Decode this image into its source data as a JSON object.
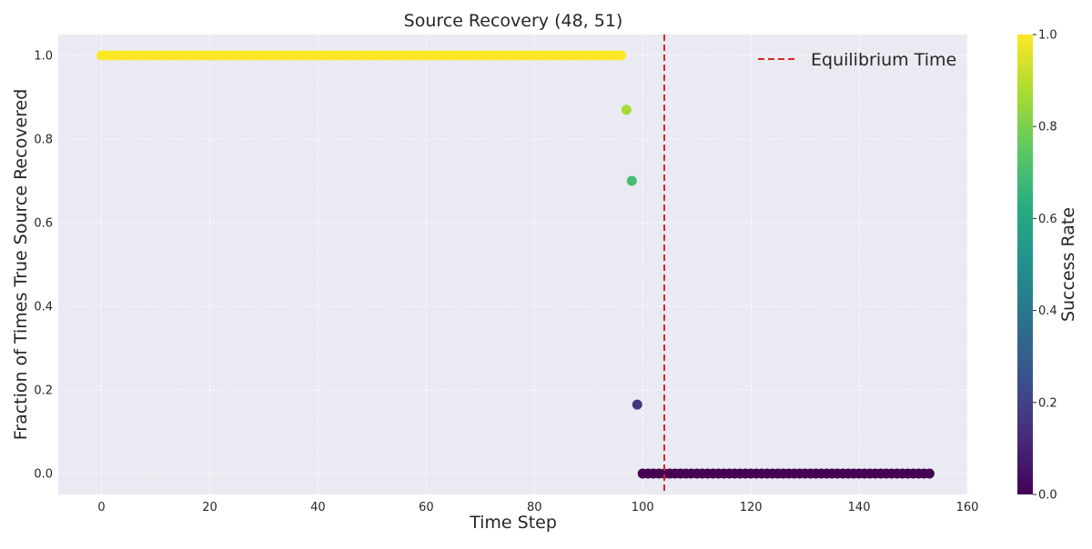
{
  "chart_data": {
    "type": "scatter",
    "title": "Source Recovery (48, 51)",
    "xlabel": "Time Step",
    "ylabel": "Fraction of Times True Source Recovered",
    "xlim": [
      -8,
      160
    ],
    "ylim": [
      -0.05,
      1.05
    ],
    "xticks": [
      0,
      20,
      40,
      60,
      80,
      100,
      120,
      140,
      160
    ],
    "yticks": [
      0.0,
      0.2,
      0.4,
      0.6,
      0.8,
      1.0
    ],
    "grid": true,
    "legend_position": "top-right",
    "series": [
      {
        "name": "",
        "colormap": "viridis",
        "points": [
          {
            "x": 0,
            "y": 1.0
          },
          {
            "x": 1,
            "y": 1.0
          },
          {
            "x": 2,
            "y": 1.0
          },
          {
            "x": 3,
            "y": 1.0
          },
          {
            "x": 4,
            "y": 1.0
          },
          {
            "x": 5,
            "y": 1.0
          },
          {
            "x": 6,
            "y": 1.0
          },
          {
            "x": 7,
            "y": 1.0
          },
          {
            "x": 8,
            "y": 1.0
          },
          {
            "x": 9,
            "y": 1.0
          },
          {
            "x": 10,
            "y": 1.0
          },
          {
            "x": 11,
            "y": 1.0
          },
          {
            "x": 12,
            "y": 1.0
          },
          {
            "x": 13,
            "y": 1.0
          },
          {
            "x": 14,
            "y": 1.0
          },
          {
            "x": 15,
            "y": 1.0
          },
          {
            "x": 16,
            "y": 1.0
          },
          {
            "x": 17,
            "y": 1.0
          },
          {
            "x": 18,
            "y": 1.0
          },
          {
            "x": 19,
            "y": 1.0
          },
          {
            "x": 20,
            "y": 1.0
          },
          {
            "x": 21,
            "y": 1.0
          },
          {
            "x": 22,
            "y": 1.0
          },
          {
            "x": 23,
            "y": 1.0
          },
          {
            "x": 24,
            "y": 1.0
          },
          {
            "x": 25,
            "y": 1.0
          },
          {
            "x": 26,
            "y": 1.0
          },
          {
            "x": 27,
            "y": 1.0
          },
          {
            "x": 28,
            "y": 1.0
          },
          {
            "x": 29,
            "y": 1.0
          },
          {
            "x": 30,
            "y": 1.0
          },
          {
            "x": 31,
            "y": 1.0
          },
          {
            "x": 32,
            "y": 1.0
          },
          {
            "x": 33,
            "y": 1.0
          },
          {
            "x": 34,
            "y": 1.0
          },
          {
            "x": 35,
            "y": 1.0
          },
          {
            "x": 36,
            "y": 1.0
          },
          {
            "x": 37,
            "y": 1.0
          },
          {
            "x": 38,
            "y": 1.0
          },
          {
            "x": 39,
            "y": 1.0
          },
          {
            "x": 40,
            "y": 1.0
          },
          {
            "x": 41,
            "y": 1.0
          },
          {
            "x": 42,
            "y": 1.0
          },
          {
            "x": 43,
            "y": 1.0
          },
          {
            "x": 44,
            "y": 1.0
          },
          {
            "x": 45,
            "y": 1.0
          },
          {
            "x": 46,
            "y": 1.0
          },
          {
            "x": 47,
            "y": 1.0
          },
          {
            "x": 48,
            "y": 1.0
          },
          {
            "x": 49,
            "y": 1.0
          },
          {
            "x": 50,
            "y": 1.0
          },
          {
            "x": 51,
            "y": 1.0
          },
          {
            "x": 52,
            "y": 1.0
          },
          {
            "x": 53,
            "y": 1.0
          },
          {
            "x": 54,
            "y": 1.0
          },
          {
            "x": 55,
            "y": 1.0
          },
          {
            "x": 56,
            "y": 1.0
          },
          {
            "x": 57,
            "y": 1.0
          },
          {
            "x": 58,
            "y": 1.0
          },
          {
            "x": 59,
            "y": 1.0
          },
          {
            "x": 60,
            "y": 1.0
          },
          {
            "x": 61,
            "y": 1.0
          },
          {
            "x": 62,
            "y": 1.0
          },
          {
            "x": 63,
            "y": 1.0
          },
          {
            "x": 64,
            "y": 1.0
          },
          {
            "x": 65,
            "y": 1.0
          },
          {
            "x": 66,
            "y": 1.0
          },
          {
            "x": 67,
            "y": 1.0
          },
          {
            "x": 68,
            "y": 1.0
          },
          {
            "x": 69,
            "y": 1.0
          },
          {
            "x": 70,
            "y": 1.0
          },
          {
            "x": 71,
            "y": 1.0
          },
          {
            "x": 72,
            "y": 1.0
          },
          {
            "x": 73,
            "y": 1.0
          },
          {
            "x": 74,
            "y": 1.0
          },
          {
            "x": 75,
            "y": 1.0
          },
          {
            "x": 76,
            "y": 1.0
          },
          {
            "x": 77,
            "y": 1.0
          },
          {
            "x": 78,
            "y": 1.0
          },
          {
            "x": 79,
            "y": 1.0
          },
          {
            "x": 80,
            "y": 1.0
          },
          {
            "x": 81,
            "y": 1.0
          },
          {
            "x": 82,
            "y": 1.0
          },
          {
            "x": 83,
            "y": 1.0
          },
          {
            "x": 84,
            "y": 1.0
          },
          {
            "x": 85,
            "y": 1.0
          },
          {
            "x": 86,
            "y": 1.0
          },
          {
            "x": 87,
            "y": 1.0
          },
          {
            "x": 88,
            "y": 1.0
          },
          {
            "x": 89,
            "y": 1.0
          },
          {
            "x": 90,
            "y": 1.0
          },
          {
            "x": 91,
            "y": 1.0
          },
          {
            "x": 92,
            "y": 1.0
          },
          {
            "x": 93,
            "y": 1.0
          },
          {
            "x": 94,
            "y": 1.0
          },
          {
            "x": 95,
            "y": 1.0
          },
          {
            "x": 96,
            "y": 1.0
          },
          {
            "x": 97,
            "y": 0.87
          },
          {
            "x": 98,
            "y": 0.7
          },
          {
            "x": 99,
            "y": 0.165
          },
          {
            "x": 100,
            "y": 0.0
          },
          {
            "x": 101,
            "y": 0.0
          },
          {
            "x": 102,
            "y": 0.0
          },
          {
            "x": 103,
            "y": 0.0
          },
          {
            "x": 104,
            "y": 0.0
          },
          {
            "x": 105,
            "y": 0.0
          },
          {
            "x": 106,
            "y": 0.0
          },
          {
            "x": 107,
            "y": 0.0
          },
          {
            "x": 108,
            "y": 0.0
          },
          {
            "x": 109,
            "y": 0.0
          },
          {
            "x": 110,
            "y": 0.0
          },
          {
            "x": 111,
            "y": 0.0
          },
          {
            "x": 112,
            "y": 0.0
          },
          {
            "x": 113,
            "y": 0.0
          },
          {
            "x": 114,
            "y": 0.0
          },
          {
            "x": 115,
            "y": 0.0
          },
          {
            "x": 116,
            "y": 0.0
          },
          {
            "x": 117,
            "y": 0.0
          },
          {
            "x": 118,
            "y": 0.0
          },
          {
            "x": 119,
            "y": 0.0
          },
          {
            "x": 120,
            "y": 0.0
          },
          {
            "x": 121,
            "y": 0.0
          },
          {
            "x": 122,
            "y": 0.0
          },
          {
            "x": 123,
            "y": 0.0
          },
          {
            "x": 124,
            "y": 0.0
          },
          {
            "x": 125,
            "y": 0.0
          },
          {
            "x": 126,
            "y": 0.0
          },
          {
            "x": 127,
            "y": 0.0
          },
          {
            "x": 128,
            "y": 0.0
          },
          {
            "x": 129,
            "y": 0.0
          },
          {
            "x": 130,
            "y": 0.0
          },
          {
            "x": 131,
            "y": 0.0
          },
          {
            "x": 132,
            "y": 0.0
          },
          {
            "x": 133,
            "y": 0.0
          },
          {
            "x": 134,
            "y": 0.0
          },
          {
            "x": 135,
            "y": 0.0
          },
          {
            "x": 136,
            "y": 0.0
          },
          {
            "x": 137,
            "y": 0.0
          },
          {
            "x": 138,
            "y": 0.0
          },
          {
            "x": 139,
            "y": 0.0
          },
          {
            "x": 140,
            "y": 0.0
          },
          {
            "x": 141,
            "y": 0.0
          },
          {
            "x": 142,
            "y": 0.0
          },
          {
            "x": 143,
            "y": 0.0
          },
          {
            "x": 144,
            "y": 0.0
          },
          {
            "x": 145,
            "y": 0.0
          },
          {
            "x": 146,
            "y": 0.0
          },
          {
            "x": 147,
            "y": 0.0
          },
          {
            "x": 148,
            "y": 0.0
          },
          {
            "x": 149,
            "y": 0.0
          },
          {
            "x": 150,
            "y": 0.0
          },
          {
            "x": 151,
            "y": 0.0
          },
          {
            "x": 152,
            "y": 0.0
          },
          {
            "x": 153,
            "y": 0.0
          }
        ]
      }
    ],
    "reference_lines": [
      {
        "label": "Equilibrium Time",
        "axis": "x",
        "value": 104,
        "color": "#d62728",
        "style": "dashed"
      }
    ],
    "colorbar": {
      "label": "Success Rate",
      "range": [
        0.0,
        1.0
      ],
      "ticks": [
        0.0,
        0.2,
        0.4,
        0.6,
        0.8,
        1.0
      ],
      "colormap": "viridis"
    },
    "colors": {
      "plot_background": "#eaeaf2",
      "grid": "#ffffff",
      "equilibrium_line": "#d62728"
    }
  }
}
